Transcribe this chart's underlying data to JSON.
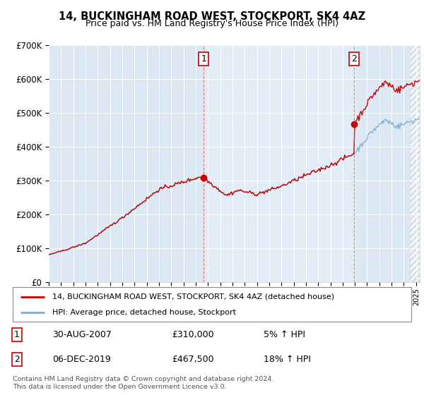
{
  "title": "14, BUCKINGHAM ROAD WEST, STOCKPORT, SK4 4AZ",
  "subtitle": "Price paid vs. HM Land Registry's House Price Index (HPI)",
  "plot_bg_color": "#dce9f5",
  "hpi_color": "#7aadd4",
  "price_color": "#cc0000",
  "legend_label_price": "14, BUCKINGHAM ROAD WEST, STOCKPORT, SK4 4AZ (detached house)",
  "legend_label_hpi": "HPI: Average price, detached house, Stockport",
  "annotation1_date": "30-AUG-2007",
  "annotation1_price": "£310,000",
  "annotation1_pct": "5% ↑ HPI",
  "annotation2_date": "06-DEC-2019",
  "annotation2_price": "£467,500",
  "annotation2_pct": "18% ↑ HPI",
  "footer": "Contains HM Land Registry data © Crown copyright and database right 2024.\nThis data is licensed under the Open Government Licence v3.0.",
  "sale1_year": 2007.66,
  "sale1_price": 310000,
  "sale2_year": 2019.92,
  "sale2_price": 467500,
  "ylim": [
    0,
    700000
  ],
  "xlim_start": 1995.0,
  "xlim_end": 2025.3
}
